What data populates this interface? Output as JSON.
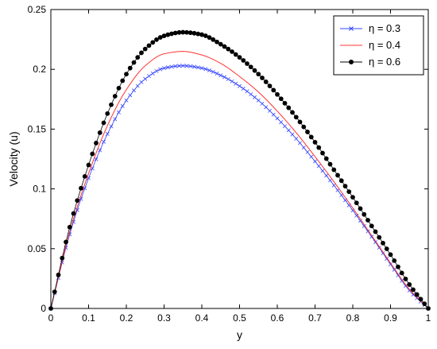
{
  "chart_data": {
    "type": "line",
    "xlabel": "y",
    "ylabel": "Velocity (u)",
    "xlim": [
      0,
      1
    ],
    "ylim": [
      0,
      0.25
    ],
    "xticks": [
      "0",
      "0.1",
      "0.2",
      "0.3",
      "0.4",
      "0.5",
      "0.6",
      "0.7",
      "0.8",
      "0.9",
      "1"
    ],
    "yticks": [
      "0",
      "0.05",
      "0.1",
      "0.15",
      "0.2",
      "0.25"
    ],
    "grid": false,
    "legend_position": "top-right",
    "x": [
      0,
      0.05,
      0.1,
      0.15,
      0.2,
      0.25,
      0.3,
      0.35,
      0.4,
      0.45,
      0.5,
      0.55,
      0.6,
      0.65,
      0.7,
      0.75,
      0.8,
      0.85,
      0.9,
      0.95,
      1.0
    ],
    "series": [
      {
        "name": "η = 0.3",
        "color": "#3344ff",
        "marker": "x",
        "values": [
          0,
          0.062,
          0.109,
          0.146,
          0.174,
          0.192,
          0.201,
          0.203,
          0.201,
          0.195,
          0.186,
          0.174,
          0.159,
          0.142,
          0.123,
          0.103,
          0.082,
          0.06,
          0.037,
          0.015,
          0
        ]
      },
      {
        "name": "η = 0.4",
        "color": "#ff3333",
        "marker": "none",
        "values": [
          0,
          0.064,
          0.113,
          0.153,
          0.183,
          0.203,
          0.213,
          0.215,
          0.212,
          0.205,
          0.194,
          0.181,
          0.165,
          0.147,
          0.127,
          0.106,
          0.084,
          0.061,
          0.038,
          0.016,
          0
        ]
      },
      {
        "name": "η = 0.6",
        "color": "#000000",
        "marker": "circle",
        "values": [
          0,
          0.068,
          0.12,
          0.163,
          0.196,
          0.217,
          0.228,
          0.231,
          0.229,
          0.221,
          0.21,
          0.196,
          0.179,
          0.16,
          0.139,
          0.116,
          0.093,
          0.069,
          0.045,
          0.02,
          0
        ]
      }
    ]
  }
}
